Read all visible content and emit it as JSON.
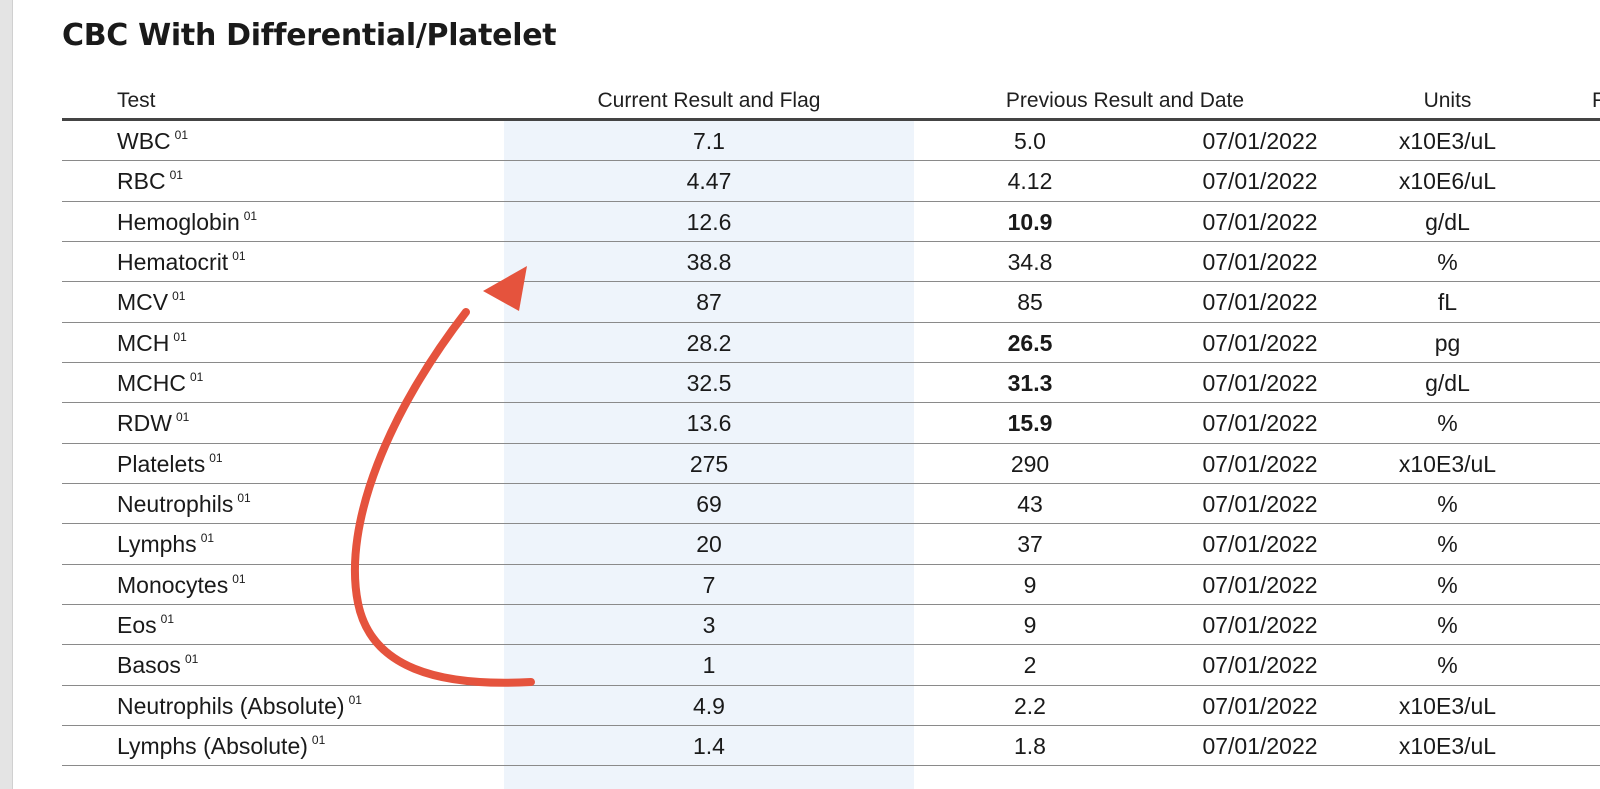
{
  "title": "CBC With Differential/Platelet",
  "columns": {
    "test": "Test",
    "current": "Current Result and Flag",
    "previous": "Previous Result and Date",
    "units": "Units",
    "cutoff": "R"
  },
  "rows": [
    {
      "test": "WBC",
      "ref": "01",
      "current": "7.1",
      "previous": "5.0",
      "date": "07/01/2022",
      "units": "x10E3/uL",
      "flag": false
    },
    {
      "test": "RBC",
      "ref": "01",
      "current": "4.47",
      "previous": "4.12",
      "date": "07/01/2022",
      "units": "x10E6/uL",
      "flag": false
    },
    {
      "test": "Hemoglobin",
      "ref": "01",
      "current": "12.6",
      "previous": "10.9",
      "date": "07/01/2022",
      "units": "g/dL",
      "flag": true
    },
    {
      "test": "Hematocrit",
      "ref": "01",
      "current": "38.8",
      "previous": "34.8",
      "date": "07/01/2022",
      "units": "%",
      "flag": false
    },
    {
      "test": "MCV",
      "ref": "01",
      "current": "87",
      "previous": "85",
      "date": "07/01/2022",
      "units": "fL",
      "flag": false
    },
    {
      "test": "MCH",
      "ref": "01",
      "current": "28.2",
      "previous": "26.5",
      "date": "07/01/2022",
      "units": "pg",
      "flag": true
    },
    {
      "test": "MCHC",
      "ref": "01",
      "current": "32.5",
      "previous": "31.3",
      "date": "07/01/2022",
      "units": "g/dL",
      "flag": true
    },
    {
      "test": "RDW",
      "ref": "01",
      "current": "13.6",
      "previous": "15.9",
      "date": "07/01/2022",
      "units": "%",
      "flag": true
    },
    {
      "test": "Platelets",
      "ref": "01",
      "current": "275",
      "previous": "290",
      "date": "07/01/2022",
      "units": "x10E3/uL",
      "flag": false
    },
    {
      "test": "Neutrophils",
      "ref": "01",
      "current": "69",
      "previous": "43",
      "date": "07/01/2022",
      "units": "%",
      "flag": false
    },
    {
      "test": "Lymphs",
      "ref": "01",
      "current": "20",
      "previous": "37",
      "date": "07/01/2022",
      "units": "%",
      "flag": false
    },
    {
      "test": "Monocytes",
      "ref": "01",
      "current": "7",
      "previous": "9",
      "date": "07/01/2022",
      "units": "%",
      "flag": false
    },
    {
      "test": "Eos",
      "ref": "01",
      "current": "3",
      "previous": "9",
      "date": "07/01/2022",
      "units": "%",
      "flag": false
    },
    {
      "test": "Basos",
      "ref": "01",
      "current": "1",
      "previous": "2",
      "date": "07/01/2022",
      "units": "%",
      "flag": false
    },
    {
      "test": "Neutrophils (Absolute)",
      "ref": "01",
      "current": "4.9",
      "previous": "2.2",
      "date": "07/01/2022",
      "units": "x10E3/uL",
      "flag": false
    },
    {
      "test": "Lymphs (Absolute)",
      "ref": "01",
      "current": "1.4",
      "previous": "1.8",
      "date": "07/01/2022",
      "units": "x10E3/uL",
      "flag": false
    }
  ],
  "annotation": {
    "color": "#e5533d",
    "shape": "curved-arrow"
  },
  "colors": {
    "current_column_bg": "#eef4fb",
    "text": "#1a1a1a",
    "rule": "#8a8a8a"
  }
}
